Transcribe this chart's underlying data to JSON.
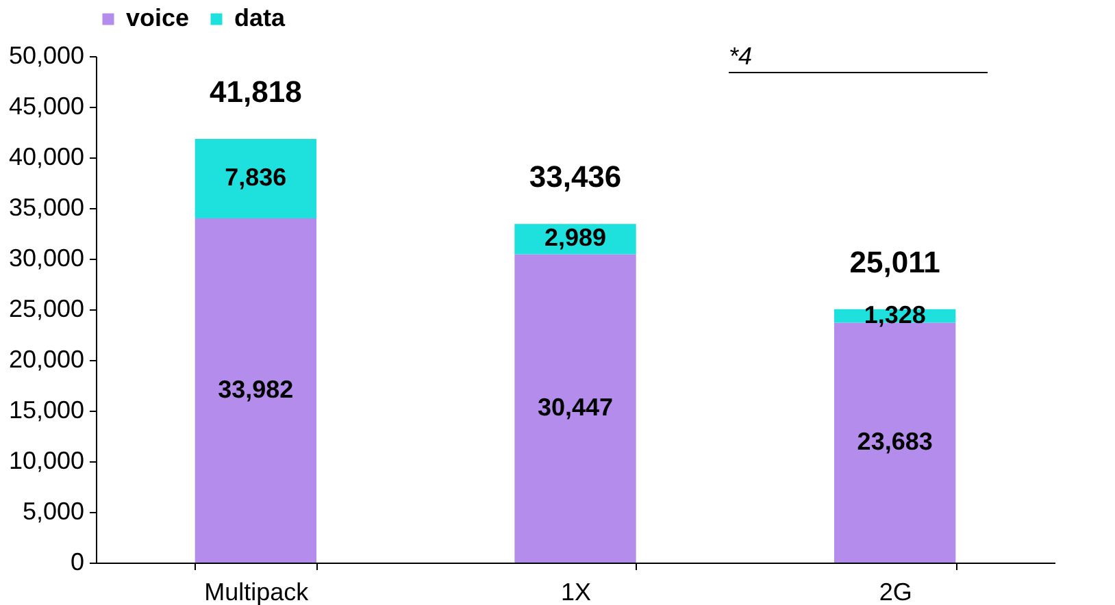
{
  "chart_data": {
    "type": "bar",
    "stacked": true,
    "categories": [
      "Multipack",
      "1X",
      "2G"
    ],
    "series": [
      {
        "name": "voice",
        "color": "#b48cec",
        "values": [
          33982,
          30447,
          23683
        ],
        "value_labels": [
          "33,982",
          "30,447",
          "23,683"
        ]
      },
      {
        "name": "data",
        "color": "#1ee0dc",
        "values": [
          7836,
          2989,
          1328
        ],
        "value_labels": [
          "7,836",
          "2,989",
          "1,328"
        ]
      }
    ],
    "totals": [
      "41,818",
      "33,436",
      "25,011"
    ],
    "ylim": [
      0,
      50000
    ],
    "yticks": [
      0,
      {
        "value": 5000,
        "label": "5,000"
      },
      {
        "value": 10000,
        "label": "10,000"
      },
      {
        "value": 15000,
        "label": "15,000"
      },
      {
        "value": 20000,
        "label": "20,000"
      },
      {
        "value": 25000,
        "label": "25,000"
      },
      {
        "value": 30000,
        "label": "30,000"
      },
      {
        "value": 35000,
        "label": "35,000"
      },
      {
        "value": 40000,
        "label": "40,000"
      },
      {
        "value": 45000,
        "label": "45,000"
      },
      {
        "value": 50000,
        "label": "50,000"
      }
    ],
    "grid": false,
    "legend": "top",
    "annotations": [
      "*4"
    ]
  }
}
